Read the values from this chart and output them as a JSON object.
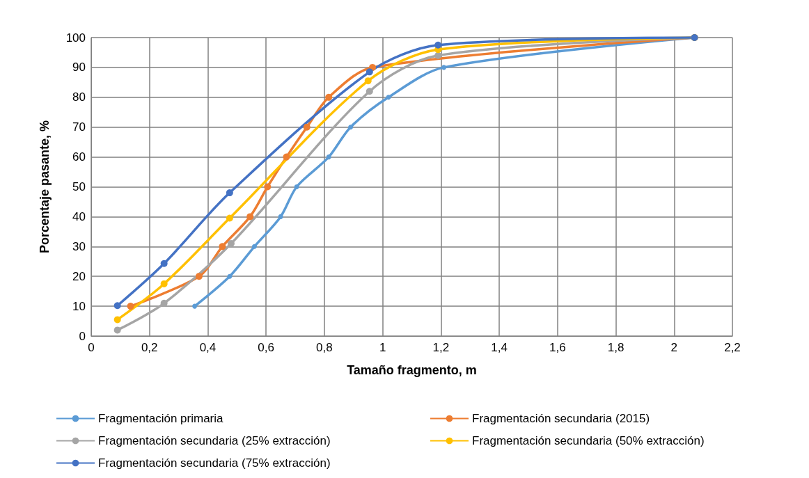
{
  "chart_data": {
    "type": "line",
    "xlabel": "Tamaño fragmento, m",
    "ylabel": "Porcentaje pasante, %",
    "xlim": [
      0,
      2.2
    ],
    "xticks": [
      {
        "value": 0,
        "label": "0"
      },
      {
        "value": 0.2,
        "label": "0,2"
      },
      {
        "value": 0.4,
        "label": "0,4"
      },
      {
        "value": 0.6,
        "label": "0,6"
      },
      {
        "value": 0.8,
        "label": "0,8"
      },
      {
        "value": 1,
        "label": "1"
      },
      {
        "value": 1.2,
        "label": "1,2"
      },
      {
        "value": 1.4,
        "label": "1,4"
      },
      {
        "value": 1.6,
        "label": "1,6"
      },
      {
        "value": 1.8,
        "label": "1,8"
      },
      {
        "value": 2,
        "label": "2"
      },
      {
        "value": 2.2,
        "label": "2,2"
      }
    ],
    "ylim": [
      0,
      100
    ],
    "yticks": [
      0,
      10,
      20,
      30,
      40,
      50,
      60,
      70,
      80,
      90,
      100
    ],
    "grid": true,
    "legend": "bottom",
    "marker": "circle",
    "line_style": "solid",
    "series": [
      {
        "name": "Fragmentación primaria",
        "color": "#5b9bd5",
        "x": [
          0.355,
          0.475,
          0.56,
          0.65,
          0.705,
          0.815,
          0.89,
          1.02,
          1.21,
          2.07
        ],
        "values": [
          10,
          20,
          30,
          40,
          50,
          60,
          70,
          80,
          90,
          100
        ]
      },
      {
        "name": "Fragmentación secundaria (2015)",
        "color": "#ed7d31",
        "x": [
          0.135,
          0.37,
          0.45,
          0.545,
          0.605,
          0.67,
          0.74,
          0.815,
          0.965,
          2.07
        ],
        "values": [
          10,
          20,
          30,
          40,
          50,
          60,
          70,
          80,
          90,
          100
        ]
      },
      {
        "name": "Fragmentación secundaria (25% extracción)",
        "color": "#a5a5a5",
        "x": [
          0.09,
          0.25,
          0.48,
          0.955,
          1.19,
          2.07
        ],
        "values": [
          2,
          11,
          31,
          82,
          94,
          100
        ]
      },
      {
        "name": "Fragmentación secundaria (50% extracción)",
        "color": "#ffc000",
        "x": [
          0.09,
          0.25,
          0.475,
          0.95,
          1.19,
          2.07
        ],
        "values": [
          5.5,
          17.5,
          39.5,
          85.5,
          96,
          100
        ]
      },
      {
        "name": "Fragmentación secundaria (75% extracción)",
        "color": "#4472c4",
        "x": [
          0.09,
          0.25,
          0.475,
          0.955,
          1.19,
          2.07
        ],
        "values": [
          10.2,
          24.3,
          48,
          88.5,
          97.5,
          100
        ]
      }
    ]
  }
}
